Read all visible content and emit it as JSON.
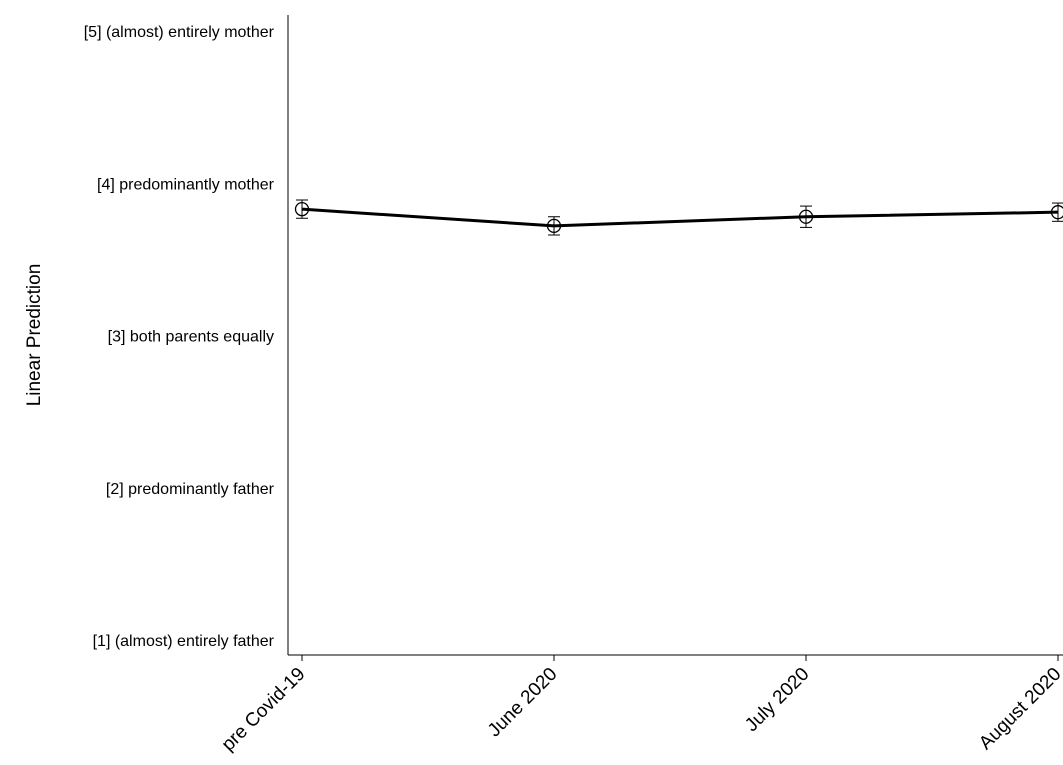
{
  "chart_data": {
    "type": "line",
    "title": "",
    "xlabel": "",
    "ylabel": "Linear Prediction",
    "categories": [
      "pre Covid-19",
      "June 2020",
      "July 2020",
      "August 2020"
    ],
    "y_ticks": [
      {
        "value": 5,
        "label": "[5] (almost) entirely mother"
      },
      {
        "value": 4,
        "label": "[4] predominantly mother"
      },
      {
        "value": 3,
        "label": "[3] both parents equally"
      },
      {
        "value": 2,
        "label": "[2] predominantly father"
      },
      {
        "value": 1,
        "label": "[1] (almost) entirely father"
      }
    ],
    "ylim": [
      1,
      5
    ],
    "grid": false,
    "legend": "none",
    "series": [
      {
        "values": [
          3.83,
          3.72,
          3.78,
          3.81
        ],
        "ci_low": [
          3.77,
          3.66,
          3.71,
          3.75
        ],
        "ci_high": [
          3.89,
          3.78,
          3.85,
          3.87
        ],
        "marker": "hollow-circle",
        "color": "#000000"
      }
    ]
  }
}
